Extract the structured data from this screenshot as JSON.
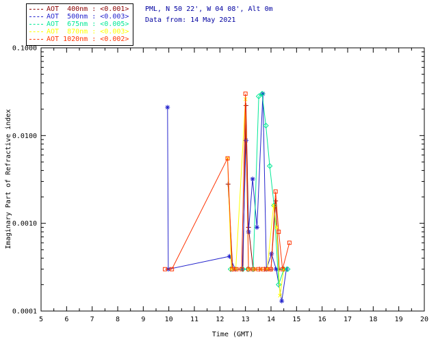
{
  "header": {
    "location": "PML, N 50 22', W 04 08', Alt 0m",
    "date": "Data from: 14 May 2021",
    "color": "#0000A0"
  },
  "chart_data": {
    "type": "line",
    "title": "",
    "xlabel": "Time (GMT)",
    "ylabel": "Imaginary Part of Refractive index",
    "x_range": [
      5,
      20
    ],
    "y_range": [
      0.0001,
      0.1
    ],
    "y_scale": "log",
    "grid": false,
    "legend_position": "top-left-outside",
    "axis_color": "#000000",
    "x_ticks": [
      5,
      6,
      7,
      8,
      9,
      10,
      11,
      12,
      13,
      14,
      15,
      16,
      17,
      18,
      19,
      20
    ],
    "y_ticks": [
      0.1,
      0.01,
      0.001,
      0.0001
    ],
    "y_tick_labels": [
      "0.1000",
      "0.0100",
      "0.0010",
      "0.0001"
    ],
    "series": [
      {
        "name": "AOT  400nm",
        "legend_value": "<0.001>",
        "color": "#8B0000",
        "marker": "plus",
        "points": [
          [
            12.32,
            0.0028
          ],
          [
            12.5,
            0.0003
          ],
          [
            12.9,
            0.0003
          ],
          [
            13.02,
            0.022
          ],
          [
            13.12,
            0.0009
          ],
          [
            13.3,
            0.0003
          ],
          [
            13.55,
            0.0003
          ],
          [
            13.75,
            0.0003
          ],
          [
            14.0,
            0.0003
          ],
          [
            14.18,
            0.0018
          ],
          [
            14.32,
            0.0003
          ],
          [
            14.5,
            0.0003
          ]
        ]
      },
      {
        "name": "AOT  500nm",
        "legend_value": "<0.003>",
        "color": "#2222CC",
        "marker": "asterisk",
        "points": [
          [
            9.95,
            0.021
          ],
          [
            9.98,
            0.0003
          ],
          [
            12.38,
            0.00042
          ],
          [
            12.6,
            0.0003
          ],
          [
            12.88,
            0.0003
          ],
          [
            13.02,
            0.0088
          ],
          [
            13.12,
            0.0008
          ],
          [
            13.28,
            0.0032
          ],
          [
            13.45,
            0.0009
          ],
          [
            13.68,
            0.03
          ],
          [
            13.82,
            0.0003
          ],
          [
            14.02,
            0.00045
          ],
          [
            14.2,
            0.0003
          ],
          [
            14.42,
            0.00013
          ],
          [
            14.6,
            0.0003
          ]
        ]
      },
      {
        "name": "AOT  675nm",
        "legend_value": "<0.005>",
        "color": "#00E896",
        "marker": "diamond",
        "points": [
          [
            12.42,
            0.0003
          ],
          [
            12.9,
            0.0003
          ],
          [
            13.1,
            0.0003
          ],
          [
            13.3,
            0.0003
          ],
          [
            13.52,
            0.028
          ],
          [
            13.65,
            0.03
          ],
          [
            13.8,
            0.013
          ],
          [
            13.95,
            0.0045
          ],
          [
            14.12,
            0.0016
          ],
          [
            14.3,
            0.0002
          ],
          [
            14.5,
            0.0003
          ],
          [
            14.65,
            0.0003
          ]
        ]
      },
      {
        "name": "AOT  870nm",
        "legend_value": "<0.003>",
        "color": "#FFFF00",
        "marker": "cross",
        "points": [
          [
            12.3,
            0.0055
          ],
          [
            12.45,
            0.0003
          ],
          [
            12.62,
            0.0003
          ],
          [
            13.0,
            0.026
          ],
          [
            13.12,
            0.0003
          ],
          [
            13.35,
            0.0003
          ],
          [
            13.6,
            0.0003
          ],
          [
            13.85,
            0.0003
          ],
          [
            14.1,
            0.0016
          ],
          [
            14.22,
            0.0009
          ],
          [
            14.35,
            0.00015
          ],
          [
            14.5,
            0.0003
          ]
        ]
      },
      {
        "name": "AOT 1020nm",
        "legend_value": "<0.002>",
        "color": "#FF3300",
        "marker": "square",
        "points": [
          [
            9.85,
            0.0003
          ],
          [
            10.12,
            0.0003
          ],
          [
            12.3,
            0.0055
          ],
          [
            12.48,
            0.0003
          ],
          [
            12.65,
            0.0003
          ],
          [
            12.85,
            0.0003
          ],
          [
            13.0,
            0.03
          ],
          [
            13.12,
            0.0003
          ],
          [
            13.3,
            0.0003
          ],
          [
            13.5,
            0.0003
          ],
          [
            13.68,
            0.0003
          ],
          [
            13.85,
            0.0003
          ],
          [
            14.0,
            0.0003
          ],
          [
            14.18,
            0.0023
          ],
          [
            14.3,
            0.0008
          ],
          [
            14.45,
            0.0003
          ],
          [
            14.72,
            0.0006
          ]
        ]
      }
    ]
  }
}
